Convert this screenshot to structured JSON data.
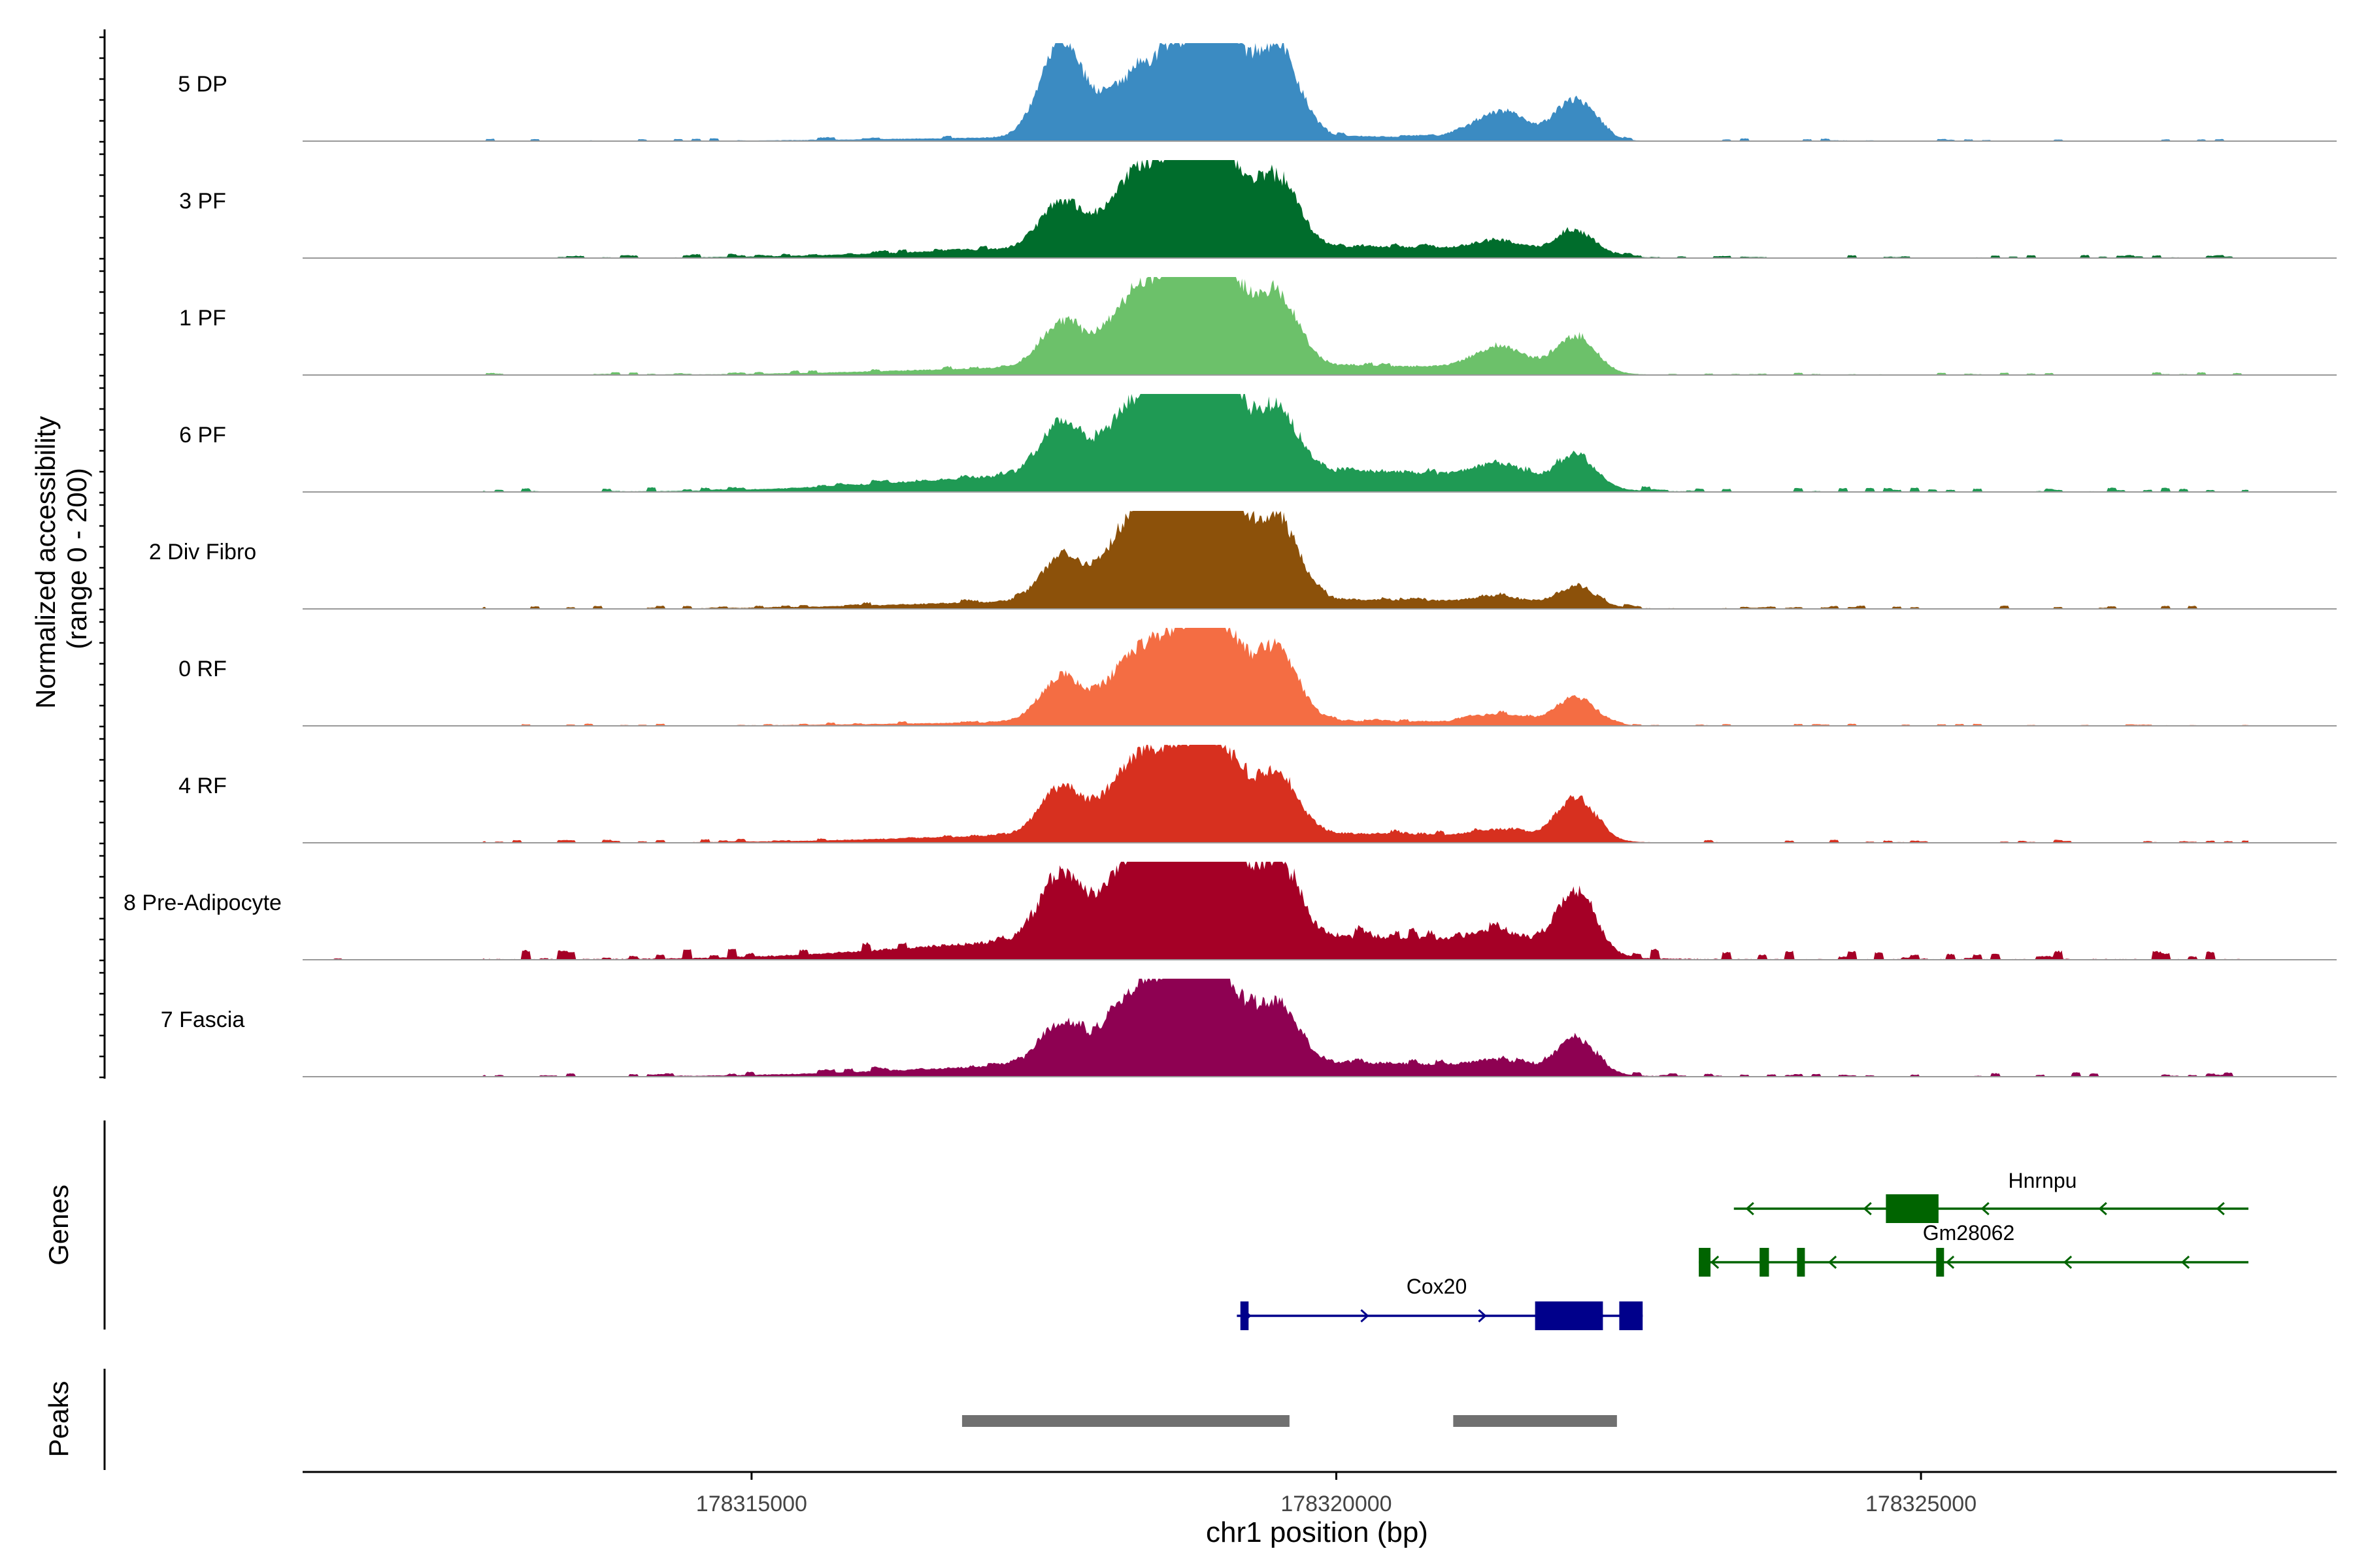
{
  "chart_data": {
    "type": "area",
    "chromosome": "chr1",
    "region": [
      178311200,
      178327800
    ],
    "y_axis_label_line1": "Normalized accessibility",
    "y_axis_label_line2": "(range 0 - 200)",
    "y_range": [
      0,
      200
    ],
    "x_axis_label": "chr1 position (bp)",
    "x_ticks": [
      {
        "value": 178315000,
        "label": "178315000"
      },
      {
        "value": 178320000,
        "label": "178320000"
      },
      {
        "value": 178325000,
        "label": "178325000"
      }
    ],
    "tracks": [
      {
        "name": "5 DP",
        "color": "#3B8BC2",
        "noise": 0.05,
        "main": [
          1.0,
          0.62,
          0.78,
          1.0,
          0.92
        ],
        "sec": [
          0.28,
          0.42
        ],
        "extra": 0.04
      },
      {
        "name": "3 PF",
        "color": "#006D2C",
        "noise": 0.06,
        "main": [
          0.48,
          0.72,
          0.82,
          0.85,
          0.72
        ],
        "sec": [
          0.12,
          0.25
        ],
        "extra": 0.1
      },
      {
        "name": "1 PF",
        "color": "#6CC16A",
        "noise": 0.05,
        "main": [
          0.46,
          0.72,
          0.86,
          0.88,
          0.76
        ],
        "sec": [
          0.24,
          0.38
        ],
        "extra": 0.08
      },
      {
        "name": "6 PF",
        "color": "#1F9A54",
        "noise": 0.08,
        "main": [
          0.52,
          0.72,
          0.8,
          0.82,
          0.68
        ],
        "sec": [
          0.18,
          0.32
        ],
        "extra": 0.18
      },
      {
        "name": "2 Div Fibro",
        "color": "#8C510A",
        "noise": 0.06,
        "main": [
          0.44,
          0.85,
          1.0,
          1.0,
          0.88
        ],
        "sec": [
          0.08,
          0.2
        ],
        "extra": 0.08
      },
      {
        "name": "0 RF",
        "color": "#F46D43",
        "noise": 0.04,
        "main": [
          0.46,
          0.66,
          0.76,
          0.82,
          0.74
        ],
        "sec": [
          0.1,
          0.28
        ],
        "extra": 0.04
      },
      {
        "name": "4 RF",
        "color": "#D7301F",
        "noise": 0.06,
        "main": [
          0.48,
          0.72,
          0.74,
          0.72,
          0.62
        ],
        "sec": [
          0.08,
          0.44
        ],
        "extra": 0.08
      },
      {
        "name": "8 Pre-Adipocyte",
        "color": "#A50026",
        "noise": 0.18,
        "main": [
          0.68,
          0.86,
          0.9,
          1.0,
          0.8
        ],
        "sec": [
          0.18,
          0.64
        ],
        "extra": 0.2
      },
      {
        "name": "7 Fascia",
        "color": "#8E0152",
        "noise": 0.08,
        "main": [
          0.42,
          0.72,
          0.8,
          0.74,
          0.64
        ],
        "sec": [
          0.1,
          0.36
        ],
        "extra": 0.12
      }
    ],
    "genes_label": "Genes",
    "genes": [
      {
        "name": "Hnrnpu",
        "color": "#006400",
        "strand": "-",
        "start": 178323400,
        "end": 178327800,
        "exons": [
          [
            178324700,
            178325150
          ]
        ]
      },
      {
        "name": "Gm28062",
        "color": "#006400",
        "strand": "-",
        "start": 178323100,
        "end": 178327800,
        "exons": [
          [
            178323100,
            178323200
          ],
          [
            178323620,
            178323700
          ],
          [
            178323940,
            178323980
          ],
          [
            178325130,
            178325190
          ]
        ]
      },
      {
        "name": "Cox20",
        "color": "#00008B",
        "strand": "+",
        "start": 178319150,
        "end": 178322620,
        "exons": [
          [
            178319180,
            178319250
          ],
          [
            178321700,
            178322280
          ],
          [
            178322420,
            178322620
          ]
        ]
      }
    ],
    "peaks_label": "Peaks",
    "peaks": [
      [
        178316800,
        178319600
      ],
      [
        178321000,
        178322400
      ]
    ],
    "peak_color": "#707070"
  }
}
